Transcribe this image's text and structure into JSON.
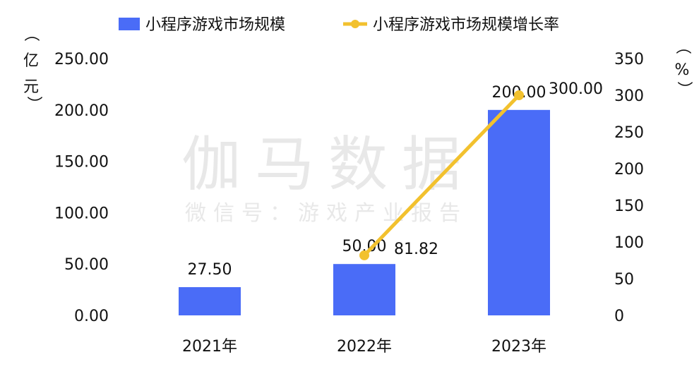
{
  "colors": {
    "bar": "#4A6CF7",
    "line": "#F2C12E",
    "text": "#111111",
    "watermark": "#e6e6e6"
  },
  "watermark": {
    "line1": "伽马数据",
    "line2": "微信号：游戏产业报告"
  },
  "axis_titles": {
    "left": [
      "（",
      "亿",
      "元",
      "）"
    ],
    "right": [
      "（",
      "%",
      "）"
    ]
  },
  "chart_data": {
    "type": "bar",
    "categories": [
      "2021年",
      "2022年",
      "2023年"
    ],
    "series": [
      {
        "name": "小程序游戏市场规模",
        "type": "bar",
        "axis": "left",
        "values": [
          27.5,
          50.0,
          200.0
        ],
        "labels": [
          "27.50",
          "50.00",
          "200.00"
        ]
      },
      {
        "name": "小程序游戏市场规模增长率",
        "type": "line",
        "axis": "right",
        "values": [
          null,
          81.82,
          300.0
        ],
        "labels": [
          null,
          "81.82",
          "300.00"
        ]
      }
    ],
    "y_left": {
      "ylim": [
        0,
        250
      ],
      "ticks": [
        "0.00",
        "50.00",
        "100.00",
        "150.00",
        "200.00",
        "250.00"
      ]
    },
    "y_right": {
      "ylim": [
        0,
        350
      ],
      "ticks": [
        "0",
        "50",
        "100",
        "150",
        "200",
        "250",
        "300",
        "350"
      ]
    },
    "legend": "top",
    "grid": false
  }
}
